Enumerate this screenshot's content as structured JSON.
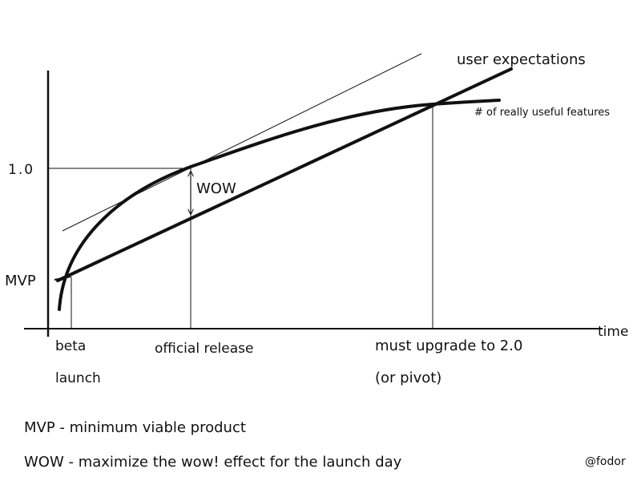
{
  "colors": {
    "ink": "#111111",
    "background": "#ffffff"
  },
  "axes": {
    "x_label": "time"
  },
  "y_ticks": {
    "mvp": "MVP",
    "v1": "1.0"
  },
  "curves": {
    "user_expectations": "user expectations",
    "useful_features": "# of really useful features"
  },
  "gap_label": "WOW",
  "milestones": {
    "beta": [
      "beta",
      "launch"
    ],
    "official_release": "official release",
    "upgrade": [
      "must upgrade to 2.0",
      "(or pivot)"
    ]
  },
  "legend": {
    "mvp_line": "MVP - minimum viable product",
    "wow_line": "WOW - maximize the wow! effect for the launch day"
  },
  "signature": "@fodor"
}
